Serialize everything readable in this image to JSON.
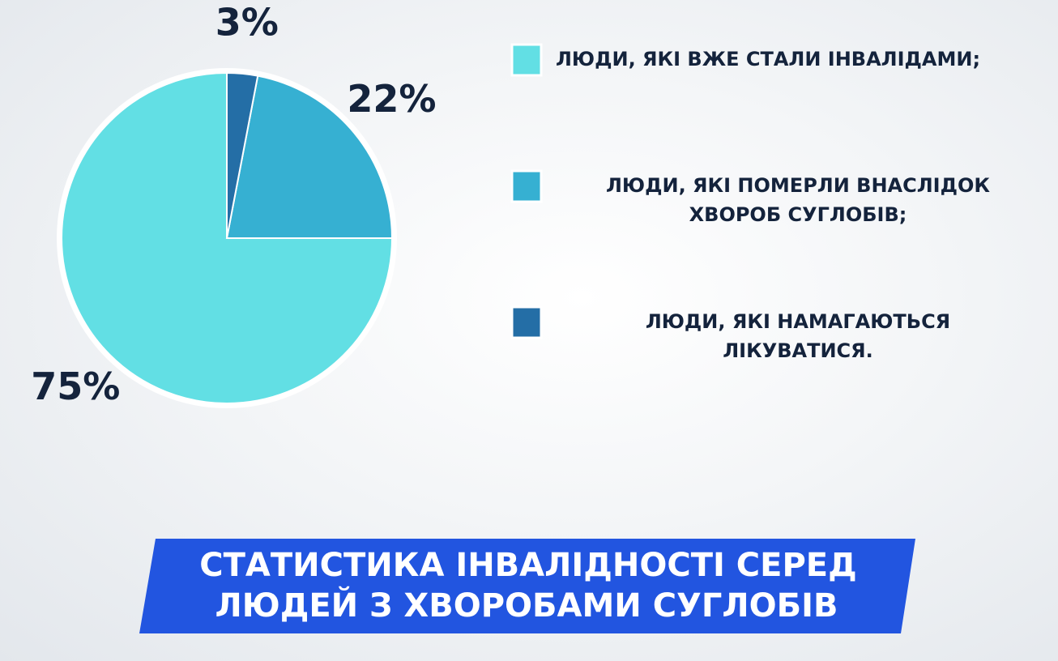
{
  "chart_data": {
    "type": "pie",
    "title": [
      "СТАТИСТИКА ІНВАЛІДНОСТІ СЕРЕД",
      "ЛЮДЕЙ З ХВОРОБАМИ СУГЛОБІВ"
    ],
    "categories": [
      [
        "ЛЮДИ, ЯКІ ВЖЕ СТАЛИ ІНВАЛІДАМИ;"
      ],
      [
        "ЛЮДИ, ЯКІ ПОМЕРЛИ ВНАСЛІДОК",
        "ХВОРОБ СУГЛОБІВ;"
      ],
      [
        "ЛЮДИ, ЯКІ НАМАГАЮТЬСЯ",
        "ЛІКУВАТИСЯ."
      ]
    ],
    "values": [
      75,
      22,
      3
    ],
    "value_labels": [
      "75%",
      "22%",
      "3%"
    ],
    "colors": [
      "#62dfe4",
      "#36b0d2",
      "#246ea6"
    ]
  }
}
